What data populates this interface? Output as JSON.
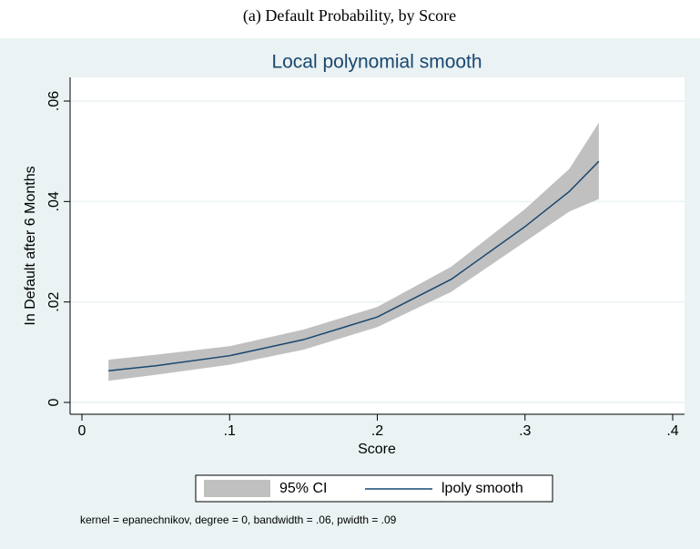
{
  "caption": "(a) Default Probability, by Score",
  "chart_data": {
    "type": "line",
    "title": "Local polynomial smooth",
    "x_label": "Score",
    "y_label": "In Default after 6 Months",
    "note": "kernel = epanechnikov, degree = 0, bandwidth = .06, pwidth = .09",
    "x": [
      0.018,
      0.05,
      0.1,
      0.15,
      0.2,
      0.25,
      0.3,
      0.33,
      0.35
    ],
    "band": {
      "name": "95% CI",
      "color": "#c0c0c0",
      "lower": [
        0.0043,
        0.0055,
        0.0075,
        0.0105,
        0.015,
        0.022,
        0.032,
        0.038,
        0.0405
      ],
      "upper": [
        0.0085,
        0.0095,
        0.0112,
        0.0145,
        0.019,
        0.027,
        0.0385,
        0.0465,
        0.0557
      ]
    },
    "series": [
      {
        "name": "lpoly smooth",
        "color": "#1a476f",
        "values": [
          0.0063,
          0.0073,
          0.0093,
          0.0125,
          0.017,
          0.0245,
          0.035,
          0.042,
          0.048
        ]
      }
    ],
    "xlim": [
      0,
      0.4
    ],
    "ylim": [
      0,
      0.06
    ],
    "xticks": [
      0,
      {
        "value": 0.1,
        "label": ".1"
      },
      {
        "value": 0.2,
        "label": ".2"
      },
      {
        "value": 0.3,
        "label": ".3"
      },
      {
        "value": 0.4,
        "label": ".4"
      }
    ],
    "yticks": [
      0,
      {
        "value": 0.02,
        "label": ".02"
      },
      {
        "value": 0.04,
        "label": ".04"
      },
      {
        "value": 0.06,
        "label": ".06"
      }
    ],
    "grid": true,
    "legend": "bottom"
  }
}
